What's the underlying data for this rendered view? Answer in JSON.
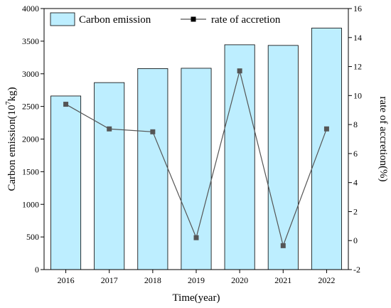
{
  "chart_data": {
    "type": "bar",
    "categories": [
      "2016",
      "2017",
      "2018",
      "2019",
      "2020",
      "2021",
      "2022"
    ],
    "series": [
      {
        "name": "Carbon emission",
        "type": "bar",
        "axis": "left",
        "color": "#bdeeff",
        "values": [
          2660,
          2865,
          3080,
          3085,
          3445,
          3435,
          3700
        ]
      },
      {
        "name": "rate of accretion",
        "type": "line",
        "axis": "right",
        "color": "#555555",
        "marker": "square",
        "values": [
          9.4,
          7.7,
          7.5,
          0.2,
          11.7,
          -0.35,
          7.7
        ]
      }
    ],
    "xlabel": "Time(year)",
    "ylabel": "Carbon emission(10^7kg)",
    "ylabel_prefix": "Carbon emission(10",
    "ylabel_sup": "7",
    "ylabel_suffix": "kg)",
    "y2label": "rate of accretion(%)",
    "ylim": [
      0,
      4000
    ],
    "y2lim": [
      -2,
      16
    ],
    "yticks": [
      "0",
      "500",
      "1000",
      "1500",
      "2000",
      "2500",
      "3000",
      "3500",
      "4000"
    ],
    "y2ticks": [
      "-2",
      "0",
      "2",
      "4",
      "6",
      "8",
      "10",
      "12",
      "14",
      "16"
    ],
    "legend": [
      "Carbon emission",
      "rate of accretion"
    ],
    "legend_position": "top",
    "grid": false
  }
}
